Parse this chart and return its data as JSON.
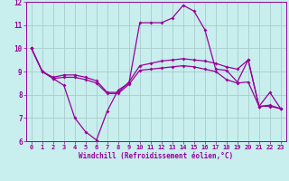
{
  "xlabel": "Windchill (Refroidissement éolien,°C)",
  "xlim": [
    -0.5,
    23.5
  ],
  "ylim": [
    6,
    12
  ],
  "yticks": [
    6,
    7,
    8,
    9,
    10,
    11,
    12
  ],
  "xticks": [
    0,
    1,
    2,
    3,
    4,
    5,
    6,
    7,
    8,
    9,
    10,
    11,
    12,
    13,
    14,
    15,
    16,
    17,
    18,
    19,
    20,
    21,
    22,
    23
  ],
  "background_color": "#c8eeee",
  "grid_color": "#aacccc",
  "line_color": "#990099",
  "line1_y": [
    10.0,
    9.0,
    8.7,
    8.4,
    7.0,
    6.4,
    6.05,
    7.3,
    8.2,
    8.5,
    11.1,
    11.1,
    11.1,
    11.3,
    11.85,
    11.6,
    10.8,
    9.1,
    9.05,
    8.55,
    9.5,
    7.5,
    8.1,
    7.4
  ],
  "line2_y": [
    10.0,
    9.0,
    8.75,
    8.85,
    8.85,
    8.75,
    8.6,
    8.1,
    8.1,
    8.55,
    9.25,
    9.35,
    9.45,
    9.5,
    9.55,
    9.5,
    9.45,
    9.35,
    9.2,
    9.1,
    9.5,
    7.5,
    7.55,
    7.4
  ],
  "line3_y": [
    10.0,
    9.0,
    8.7,
    8.75,
    8.75,
    8.65,
    8.5,
    8.05,
    8.05,
    8.45,
    9.05,
    9.1,
    9.15,
    9.2,
    9.25,
    9.2,
    9.1,
    9.0,
    8.65,
    8.5,
    8.55,
    7.5,
    7.5,
    7.4
  ]
}
